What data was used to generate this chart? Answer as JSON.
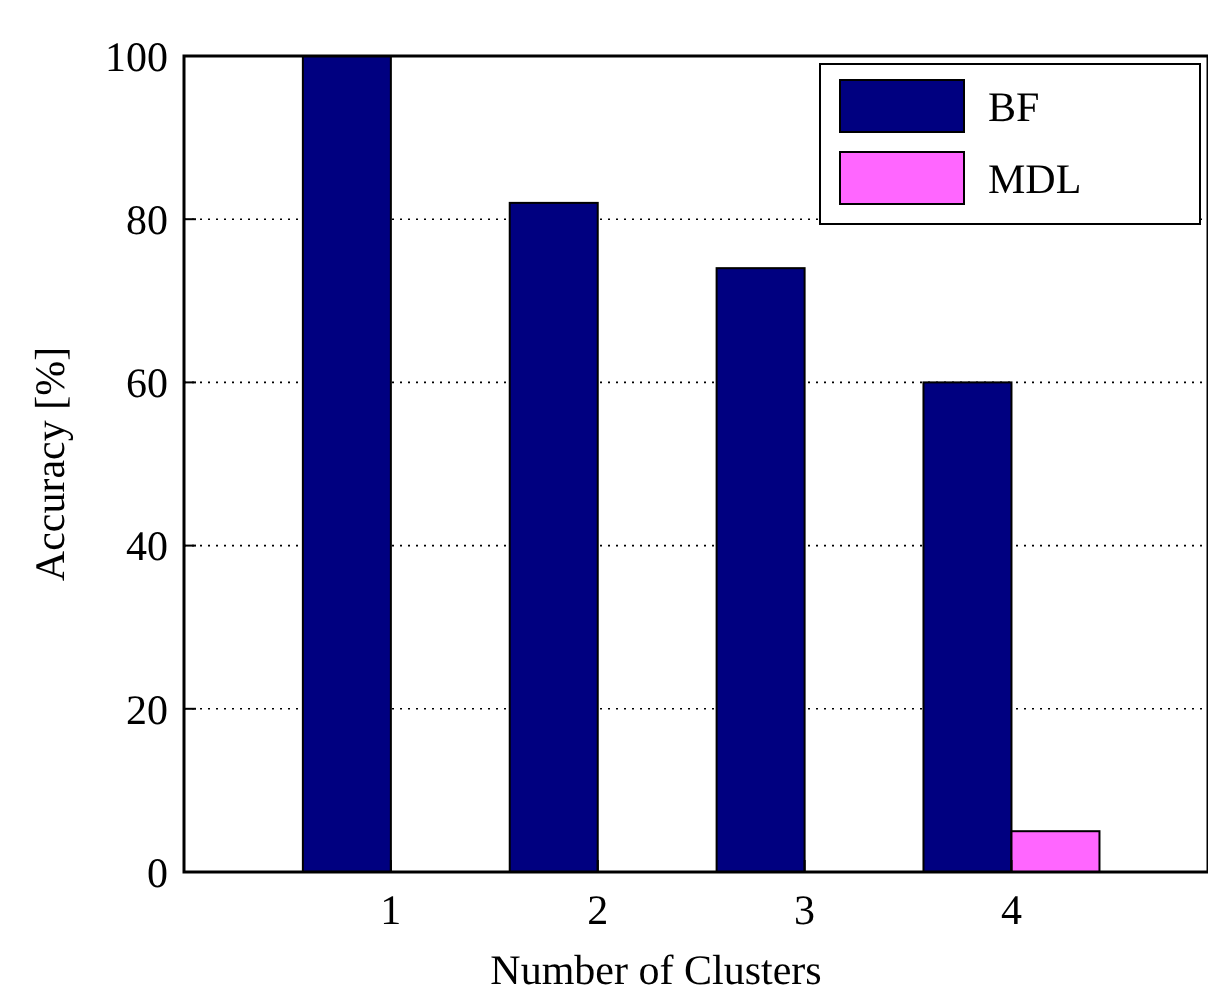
{
  "chart_data": {
    "type": "bar",
    "xlabel": "Number of Clusters",
    "ylabel": "Accuracy [%]",
    "categories": [
      "1",
      "2",
      "3",
      "4"
    ],
    "series": [
      {
        "name": "BF",
        "color": "#000080",
        "values": [
          100,
          82,
          74,
          60
        ]
      },
      {
        "name": "MDL",
        "color": "#ff66ff",
        "values": [
          0,
          0,
          0,
          5
        ]
      }
    ],
    "ylim": [
      0,
      100
    ],
    "yticks": [
      0,
      20,
      40,
      60,
      80,
      100
    ],
    "grid": "y",
    "legend": "top right"
  }
}
